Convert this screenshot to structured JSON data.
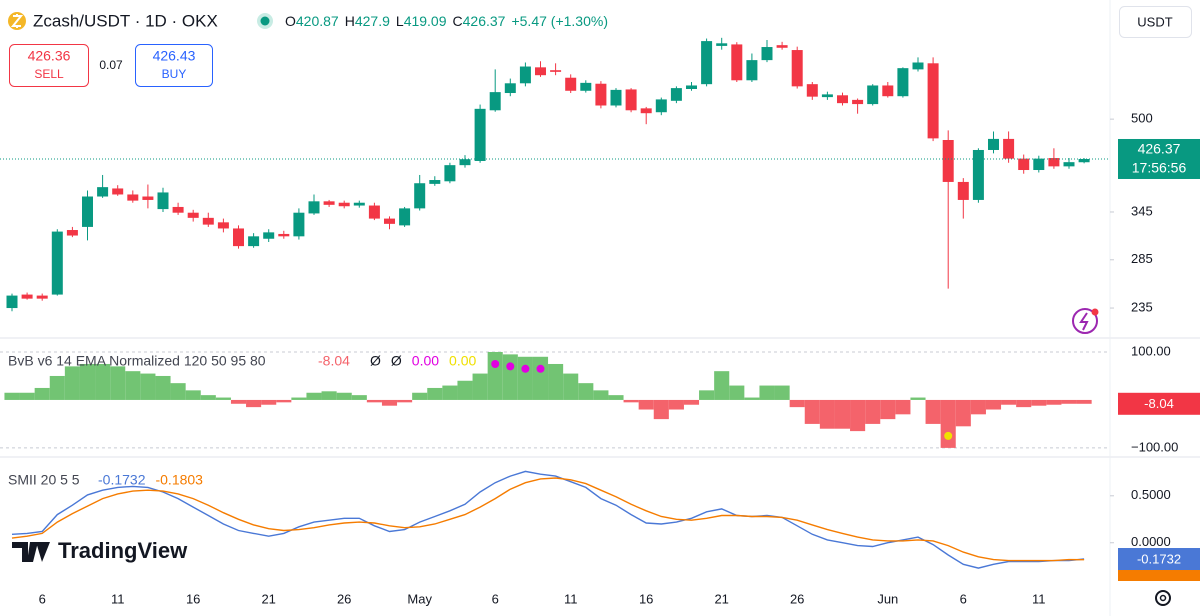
{
  "header": {
    "ohlc_labels": [
      "O",
      "H",
      "L",
      "C"
    ],
    "change": "+5.47 (+1.30%)",
    "sell_price": 426.36,
    "sell_label": "SELL",
    "spread": 0.07,
    "buy_price": 426.43,
    "buy_label": "BUY",
    "currency": "USDT",
    "brand": "TradingView"
  },
  "chart_data": [
    {
      "type": "candlestick",
      "title": "Zcash/USDT · 1D · OKX",
      "categories": [
        null,
        null,
        "6",
        null,
        null,
        null,
        null,
        "11",
        null,
        null,
        null,
        null,
        "16",
        null,
        null,
        null,
        null,
        "21",
        null,
        null,
        null,
        null,
        "26",
        null,
        null,
        null,
        null,
        "May",
        null,
        null,
        null,
        null,
        "6",
        null,
        null,
        null,
        null,
        "11",
        null,
        null,
        null,
        null,
        "16",
        null,
        null,
        null,
        null,
        "21",
        null,
        null,
        null,
        null,
        "26",
        null,
        null,
        null,
        null,
        null,
        "Jun",
        null,
        null,
        null,
        null,
        "6",
        null,
        null,
        null,
        null,
        "11",
        null,
        null,
        null
      ],
      "open": [
        235,
        248,
        247,
        248,
        321,
        325,
        367,
        379,
        370,
        367,
        349,
        352,
        344,
        337,
        331,
        323,
        301,
        310,
        316,
        313,
        343,
        360,
        358,
        354,
        354,
        336,
        327,
        350,
        386,
        390,
        416,
        423,
        518,
        555,
        577,
        615,
        608,
        590,
        560,
        576,
        528,
        563,
        522,
        514,
        538,
        564,
        575,
        670,
        674,
        584,
        633,
        672,
        659,
        575,
        546,
        550,
        540,
        531,
        572,
        548,
        610,
        625,
        460,
        389,
        362,
        442,
        462,
        427,
        408,
        428,
        414,
        420.87
      ],
      "high": [
        249,
        250,
        249,
        322,
        325,
        376,
        400,
        384,
        376,
        385,
        380,
        358,
        348,
        344,
        336,
        327,
        317,
        322,
        320,
        350,
        370,
        362,
        361,
        361,
        358,
        339,
        352,
        400,
        398,
        420,
        433,
        530,
        610,
        588,
        627,
        630,
        625,
        598,
        584,
        582,
        566,
        566,
        525,
        545,
        570,
        580,
        690,
        692,
        680,
        650,
        686,
        681,
        668,
        580,
        558,
        556,
        543,
        575,
        580,
        615,
        640,
        640,
        478,
        395,
        445,
        476,
        476,
        434,
        432,
        445,
        428,
        427.9
      ],
      "low": [
        232,
        243,
        242,
        247,
        312,
        308,
        365,
        368,
        358,
        350,
        345,
        341,
        332,
        325,
        318,
        298,
        299,
        306,
        310,
        309,
        341,
        352,
        350,
        351,
        334,
        322,
        325,
        347,
        383,
        387,
        412,
        420,
        515,
        548,
        570,
        592,
        596,
        555,
        556,
        522,
        524,
        514,
        490,
        508,
        533,
        560,
        570,
        660,
        580,
        580,
        628,
        660,
        565,
        540,
        540,
        528,
        511,
        528,
        545,
        545,
        605,
        458,
        254,
        336,
        358,
        436,
        420,
        402,
        404,
        410,
        410,
        419.09
      ],
      "close": [
        247,
        244,
        244,
        319,
        314,
        367,
        381,
        370,
        361,
        362,
        373,
        344,
        337,
        328,
        323,
        301,
        313,
        318,
        313,
        344,
        360,
        355,
        353,
        358,
        336,
        329,
        350,
        387,
        392,
        416,
        426,
        521,
        557,
        577,
        617,
        596,
        604,
        560,
        578,
        528,
        562,
        518,
        512,
        541,
        566,
        572,
        683,
        677,
        584,
        633,
        667,
        665,
        570,
        547,
        552,
        533,
        531,
        572,
        548,
        613,
        627,
        463,
        389,
        362,
        442,
        462,
        427,
        408,
        427,
        414,
        421,
        426.37
      ],
      "up_color": "#089981",
      "down_color": "#f23645",
      "log_scale": true,
      "ylim": [
        211,
        789
      ],
      "yticks": [
        235,
        285,
        345,
        500
      ],
      "last_price_time": "17:56:56"
    },
    {
      "type": "bar",
      "title": "BvB v6 14 EMA Normalized 120 50 95 80",
      "legend_values": [
        "Ø",
        "Ø",
        "0.00",
        "0.00"
      ],
      "legend_value_colors": [
        "#131722",
        "#131722",
        "#e100e1",
        "#f0e000"
      ],
      "values": [
        15,
        15,
        25,
        50,
        70,
        75,
        75,
        70,
        60,
        55,
        50,
        35,
        20,
        10,
        5,
        -8,
        -15,
        -10,
        -5,
        5,
        15,
        18,
        15,
        10,
        -5,
        -12,
        -5,
        15,
        25,
        30,
        40,
        55,
        100,
        95,
        90,
        90,
        75,
        55,
        35,
        20,
        10,
        -5,
        -20,
        -40,
        -20,
        -10,
        20,
        60,
        30,
        5,
        30,
        30,
        -15,
        -50,
        -60,
        -60,
        -65,
        -50,
        -40,
        -30,
        5,
        -50,
        -100,
        -55,
        -30,
        -20,
        -10,
        -15,
        -12,
        -10,
        -8,
        -8.04
      ],
      "up_color": "#72c473",
      "down_color": "#f4636b",
      "marker_colors": [
        null,
        null,
        null,
        null,
        null,
        null,
        null,
        null,
        null,
        null,
        null,
        null,
        null,
        null,
        null,
        null,
        null,
        null,
        null,
        null,
        null,
        null,
        null,
        null,
        null,
        null,
        null,
        null,
        null,
        null,
        null,
        null,
        "#e100e1",
        "#e100e1",
        "#e100e1",
        "#e100e1",
        null,
        null,
        null,
        null,
        null,
        null,
        null,
        null,
        null,
        null,
        null,
        null,
        null,
        null,
        null,
        null,
        null,
        null,
        null,
        null,
        null,
        null,
        null,
        null,
        null,
        null,
        "#f0e000",
        null,
        null,
        null,
        null,
        null,
        null,
        null,
        null,
        null
      ],
      "ylim": [
        -119,
        125
      ],
      "yticks": [
        {
          "value": 100,
          "label": "100.00"
        },
        {
          "value": -100,
          "label": "−100.00"
        }
      ],
      "grid": true
    },
    {
      "type": "line",
      "title": "SMII 20 5 5",
      "series": [
        {
          "color": "#4a78d6",
          "values": [
            0.09,
            0.1,
            0.12,
            0.3,
            0.4,
            0.51,
            0.56,
            0.59,
            0.6,
            0.59,
            0.54,
            0.47,
            0.38,
            0.29,
            0.2,
            0.13,
            0.1,
            0.07,
            0.1,
            0.17,
            0.22,
            0.24,
            0.26,
            0.26,
            0.18,
            0.12,
            0.14,
            0.22,
            0.28,
            0.34,
            0.41,
            0.54,
            0.64,
            0.71,
            0.76,
            0.73,
            0.71,
            0.65,
            0.59,
            0.47,
            0.4,
            0.3,
            0.21,
            0.2,
            0.22,
            0.26,
            0.33,
            0.36,
            0.29,
            0.28,
            0.29,
            0.27,
            0.18,
            0.09,
            0.03,
            0.0,
            -0.03,
            -0.04,
            0.0,
            0.03,
            0.06,
            -0.02,
            -0.13,
            -0.23,
            -0.27,
            -0.23,
            -0.2,
            -0.2,
            -0.2,
            -0.19,
            -0.19,
            -0.1732
          ]
        },
        {
          "color": "#f57c00",
          "values": [
            0.05,
            0.07,
            0.1,
            0.22,
            0.31,
            0.39,
            0.47,
            0.52,
            0.55,
            0.56,
            0.55,
            0.52,
            0.47,
            0.4,
            0.32,
            0.25,
            0.19,
            0.15,
            0.13,
            0.14,
            0.16,
            0.19,
            0.21,
            0.22,
            0.21,
            0.18,
            0.16,
            0.17,
            0.2,
            0.25,
            0.3,
            0.38,
            0.47,
            0.57,
            0.64,
            0.68,
            0.69,
            0.67,
            0.63,
            0.56,
            0.49,
            0.41,
            0.34,
            0.28,
            0.25,
            0.24,
            0.26,
            0.29,
            0.29,
            0.28,
            0.28,
            0.27,
            0.24,
            0.19,
            0.14,
            0.1,
            0.06,
            0.03,
            0.02,
            0.02,
            0.03,
            0.02,
            -0.03,
            -0.1,
            -0.15,
            -0.18,
            -0.19,
            -0.19,
            -0.19,
            -0.19,
            -0.18,
            -0.1803
          ]
        }
      ],
      "ylim": [
        -0.45,
        0.86
      ],
      "yticks": [
        {
          "value": 0.5,
          "label": "0.5000"
        },
        {
          "value": 0,
          "label": "0.0000"
        }
      ]
    }
  ]
}
